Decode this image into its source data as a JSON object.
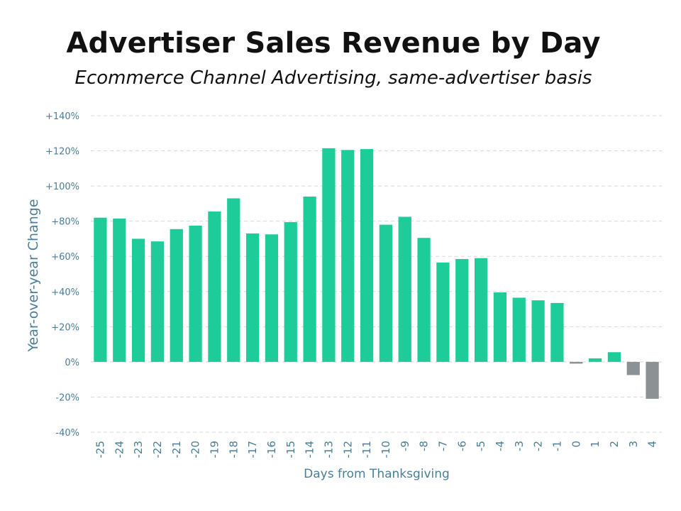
{
  "chart_data": {
    "type": "bar",
    "title": "Advertiser Sales Revenue by Day",
    "subtitle": "Ecommerce Channel Advertising, same-advertiser basis",
    "xlabel": "Days from Thanksgiving",
    "ylabel": "Year-over-year Change",
    "ylim": [
      -40,
      140
    ],
    "yticks": [
      -40,
      -20,
      0,
      20,
      40,
      60,
      80,
      100,
      120,
      140
    ],
    "ytick_labels": [
      "-40%",
      "-20%",
      "0%",
      "+20%",
      "+40%",
      "+60%",
      "+80%",
      "+100%",
      "+120%",
      "+140%"
    ],
    "grid": true,
    "categories": [
      "-25",
      "-24",
      "-23",
      "-22",
      "-21",
      "-20",
      "-19",
      "-18",
      "-17",
      "-16",
      "-15",
      "-14",
      "-13",
      "-12",
      "-11",
      "-10",
      "-9",
      "-8",
      "-7",
      "-6",
      "-5",
      "-4",
      "-3",
      "-2",
      "-1",
      "0",
      "1",
      "2",
      "3",
      "4"
    ],
    "values": [
      82,
      81.5,
      70,
      68.5,
      75.5,
      77.5,
      85.5,
      93,
      73,
      72.5,
      79.5,
      94,
      121.5,
      120.5,
      121,
      78,
      82.5,
      70.5,
      56.5,
      58.5,
      59,
      39.5,
      36.5,
      35,
      33.5,
      -1,
      2,
      5.5,
      -7.5,
      -21
    ],
    "colors": {
      "positive": "#1dcc99",
      "negative": "#8c9294",
      "grid": "#d8d8d8",
      "axis_text": "#4a7e98"
    }
  }
}
